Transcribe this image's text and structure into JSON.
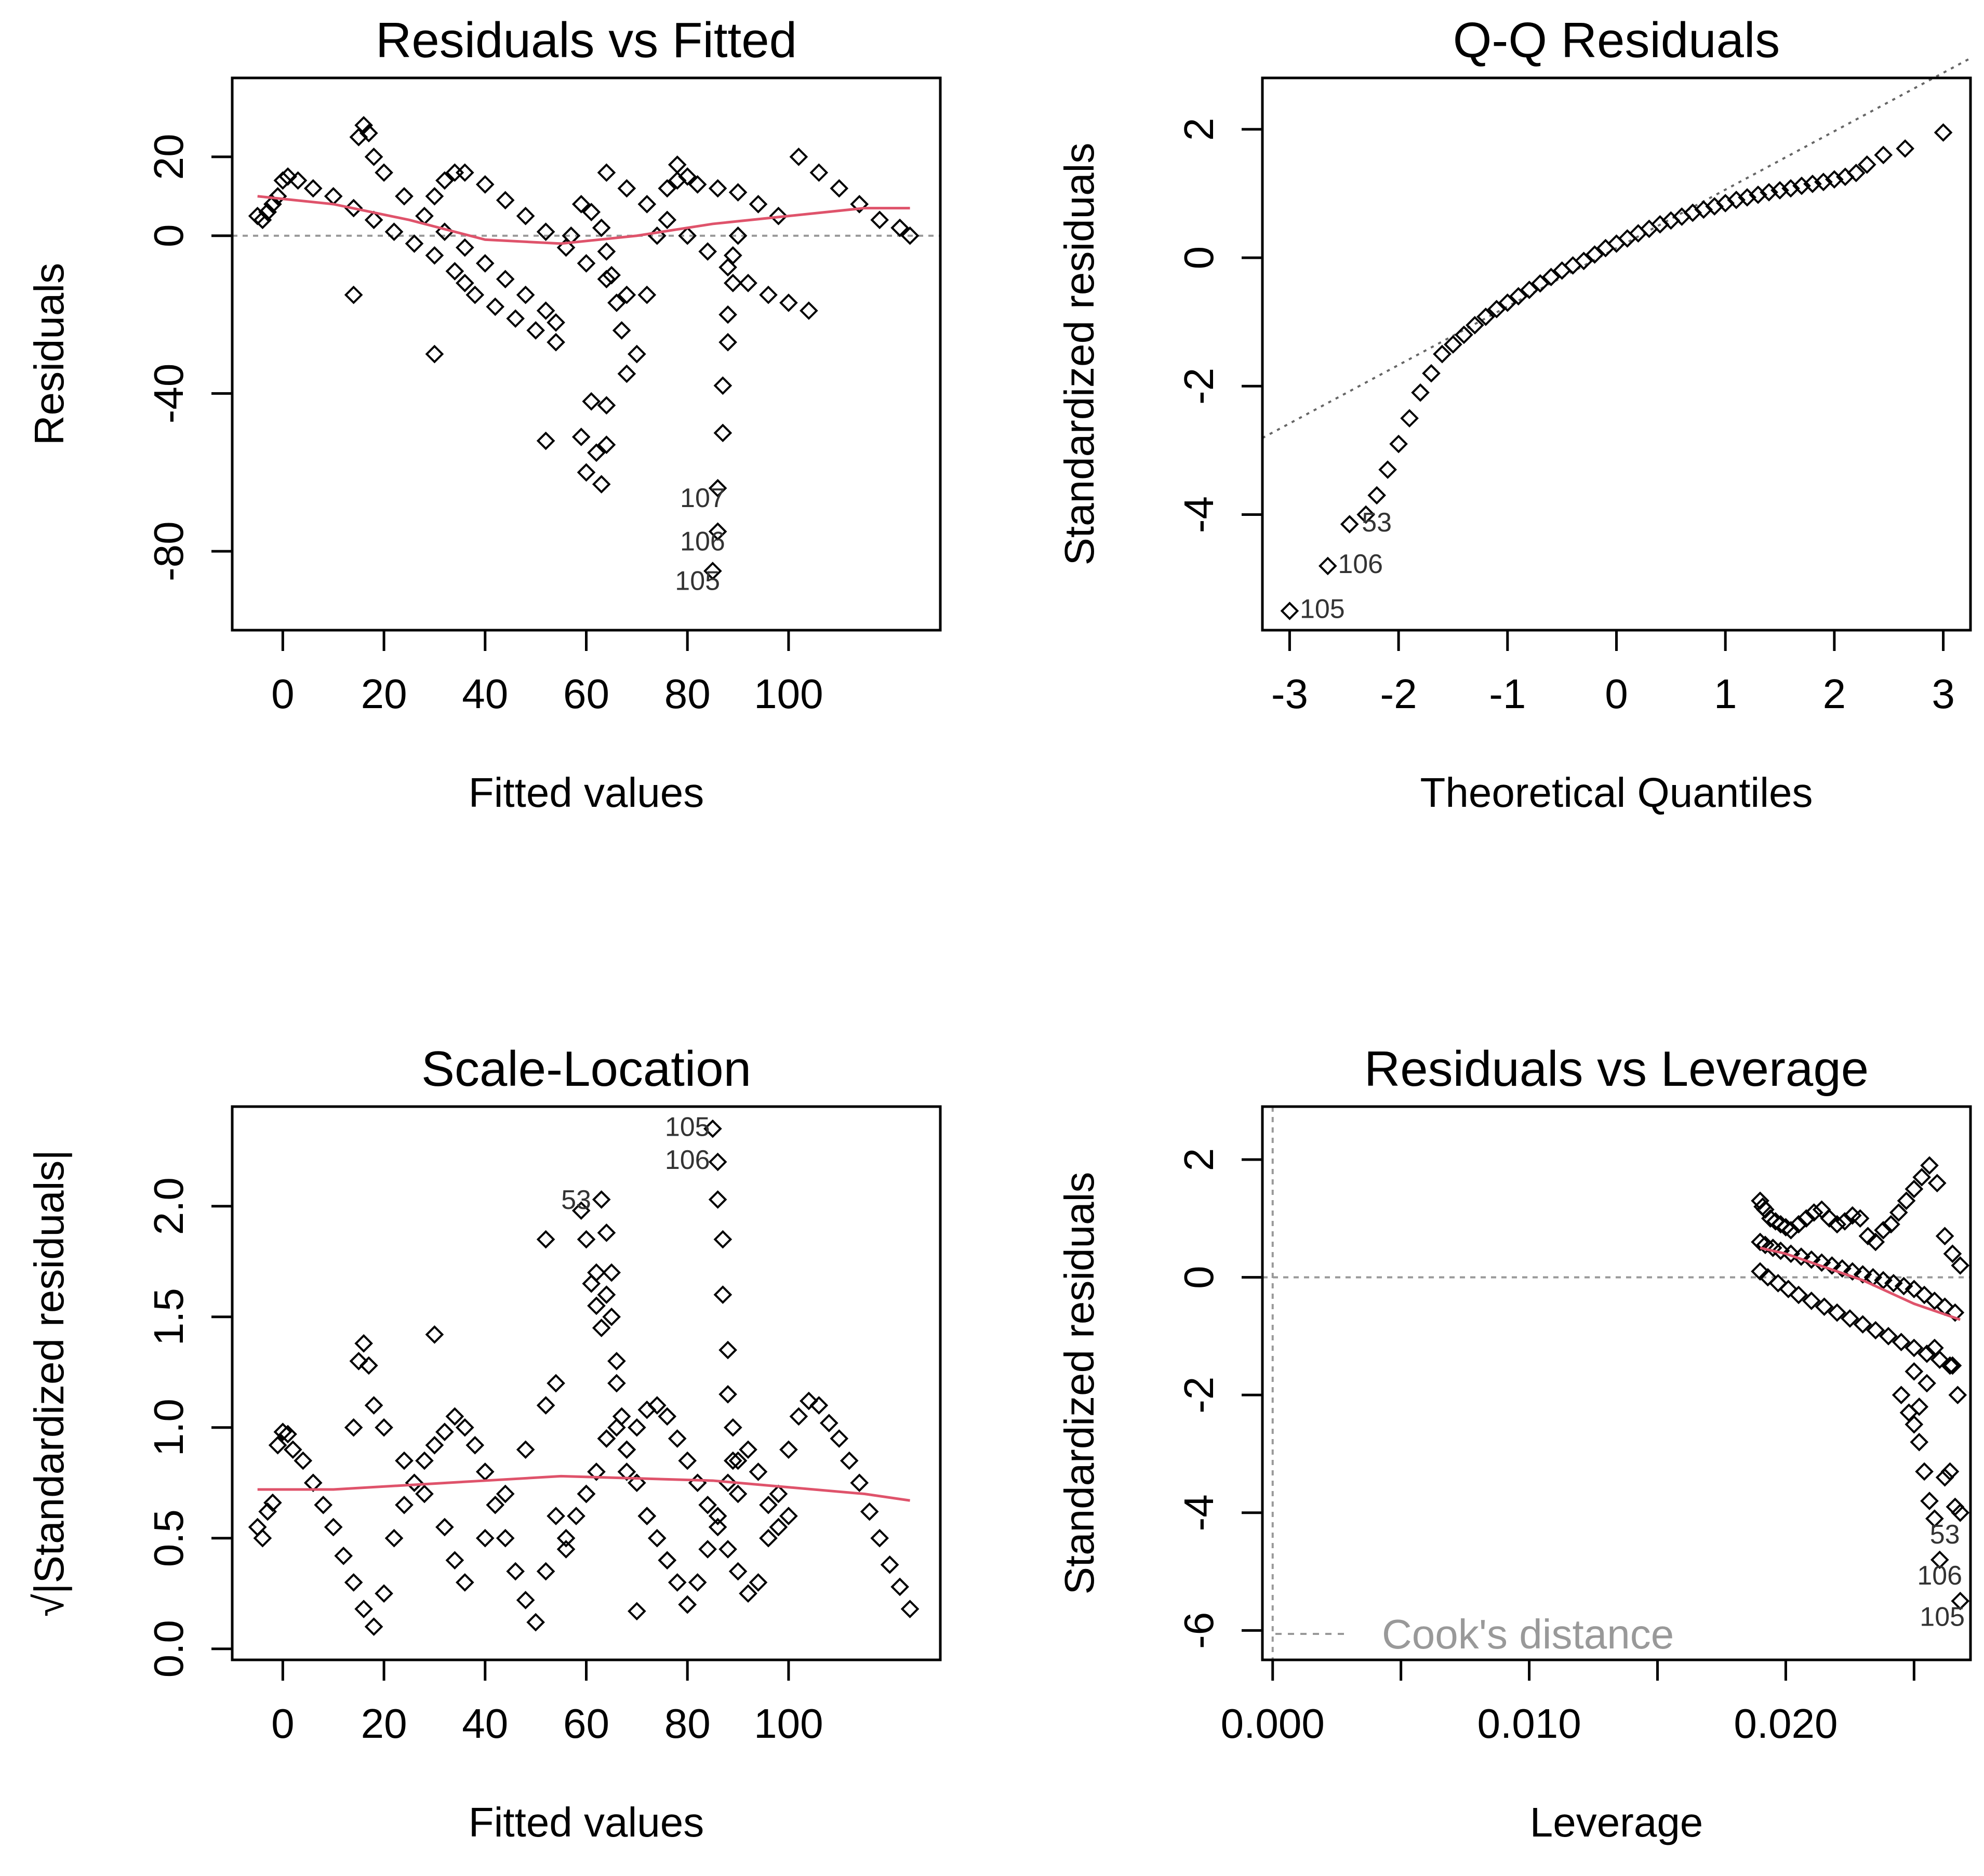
{
  "chart_data": [
    {
      "type": "scatter",
      "title": "Residuals vs Fitted",
      "xlabel": "Fitted values",
      "ylabel": "Residuals",
      "xlim": [
        -10,
        130
      ],
      "ylim": [
        -100,
        40
      ],
      "xticks": [
        0,
        20,
        40,
        60,
        80,
        100
      ],
      "xtick_labels": [
        "0",
        "20",
        "40",
        "60",
        "80",
        "100"
      ],
      "yticks": [
        -80,
        -40,
        0,
        20
      ],
      "ytick_labels": [
        "-80",
        "-40",
        "0",
        "20"
      ],
      "point_labels": [
        {
          "text": "107",
          "x": 83,
          "y": -67
        },
        {
          "text": "106",
          "x": 83,
          "y": -78
        },
        {
          "text": "105",
          "x": 82,
          "y": -88
        }
      ],
      "series": [
        {
          "x": [
            -5,
            -4,
            -3,
            -2,
            -1,
            0,
            1,
            3,
            6,
            10,
            14,
            18,
            22,
            26,
            30,
            34,
            36,
            38,
            42,
            46,
            50,
            54
          ],
          "y": [
            5,
            4,
            6,
            8,
            10,
            14,
            15,
            14,
            12,
            10,
            7,
            4,
            1,
            -2,
            -5,
            -9,
            -12,
            -15,
            -18,
            -21,
            -24,
            -27
          ]
        },
        {
          "x": [
            14,
            15,
            16,
            17,
            18,
            20,
            24,
            28,
            32,
            36,
            40,
            44,
            48,
            52,
            54
          ],
          "y": [
            -15,
            25,
            28,
            26,
            20,
            16,
            10,
            5,
            1,
            -3,
            -7,
            -11,
            -15,
            -19,
            -22
          ]
        },
        {
          "x": [
            30,
            32,
            34,
            36,
            40,
            44,
            48,
            52,
            56,
            60,
            64,
            68
          ],
          "y": [
            10,
            14,
            16,
            16,
            13,
            9,
            5,
            1,
            -3,
            -7,
            -11,
            -15
          ]
        },
        {
          "x": [
            57,
            59,
            61,
            63,
            64,
            65,
            66,
            67,
            68,
            70,
            72,
            74,
            76,
            78,
            80
          ],
          "y": [
            0,
            8,
            6,
            2,
            -4,
            -10,
            -17,
            -24,
            -35,
            -30,
            -15,
            0,
            12,
            18,
            15
          ]
        },
        {
          "x": [
            64,
            68,
            72,
            76,
            80,
            84,
            88,
            92,
            96,
            100,
            104
          ],
          "y": [
            16,
            12,
            8,
            4,
            0,
            -4,
            -8,
            -12,
            -15,
            -17,
            -19
          ]
        },
        {
          "x": [
            78,
            82,
            86,
            90,
            94,
            98,
            102,
            106,
            110,
            114,
            118,
            122,
            124
          ],
          "y": [
            14,
            13,
            12,
            11,
            8,
            5,
            20,
            16,
            12,
            8,
            4,
            2,
            0
          ]
        },
        {
          "x": [
            52,
            59,
            60,
            61,
            62,
            63,
            64,
            64,
            85,
            86,
            86,
            87,
            87,
            88,
            88,
            89,
            89,
            90,
            30
          ],
          "y": [
            -52,
            -51,
            -60,
            -42,
            -55,
            -63,
            -43,
            -53,
            -85,
            -75,
            -64,
            -50,
            -38,
            -27,
            -20,
            -12,
            -5,
            0,
            -30
          ]
        }
      ],
      "smooth": {
        "x": [
          -5,
          10,
          25,
          40,
          55,
          70,
          85,
          100,
          115,
          124
        ],
        "y": [
          10,
          8,
          4,
          -1,
          -2,
          0,
          3,
          5,
          7,
          7
        ]
      },
      "reference_line": {
        "y": 0
      }
    },
    {
      "type": "scatter",
      "title": "Q-Q Residuals",
      "xlabel": "Theoretical Quantiles",
      "ylabel": "Standardized residuals",
      "xlim": [
        -3.25,
        3.25
      ],
      "ylim": [
        -5.8,
        2.8
      ],
      "xticks": [
        -3,
        -2,
        -1,
        0,
        1,
        2,
        3
      ],
      "xtick_labels": [
        "-3",
        "-2",
        "-1",
        "0",
        "1",
        "2",
        "3"
      ],
      "yticks": [
        -4,
        -2,
        0,
        2
      ],
      "ytick_labels": [
        "-4",
        "-2",
        "0",
        "2"
      ],
      "point_labels": [
        {
          "text": "53",
          "x": -2.2,
          "y": -4.15
        },
        {
          "text": "106",
          "x": -2.35,
          "y": -4.8
        },
        {
          "text": "105",
          "x": -2.7,
          "y": -5.5
        }
      ],
      "series": [
        {
          "x": [
            -3.0,
            -2.65,
            -2.45,
            -2.3,
            -2.2,
            -2.1,
            -2.0,
            -1.9,
            -1.8,
            -1.7,
            -1.6,
            -1.5,
            -1.4,
            -1.3,
            -1.2,
            -1.1,
            -1.0,
            -0.9,
            -0.8,
            -0.7,
            -0.6,
            -0.5,
            -0.4,
            -0.3,
            -0.2,
            -0.1,
            0.0,
            0.1,
            0.2,
            0.3,
            0.4,
            0.5,
            0.6,
            0.7,
            0.8,
            0.9,
            1.0,
            1.1,
            1.2,
            1.3,
            1.4,
            1.5,
            1.6,
            1.7,
            1.8,
            1.9,
            2.0,
            2.1,
            2.2,
            2.3,
            2.45,
            2.65,
            3.0
          ],
          "y": [
            -5.5,
            -4.8,
            -4.15,
            -4.0,
            -3.7,
            -3.3,
            -2.9,
            -2.5,
            -2.1,
            -1.8,
            -1.5,
            -1.35,
            -1.2,
            -1.05,
            -0.92,
            -0.8,
            -0.7,
            -0.6,
            -0.5,
            -0.4,
            -0.3,
            -0.2,
            -0.12,
            -0.05,
            0.05,
            0.15,
            0.22,
            0.3,
            0.38,
            0.45,
            0.52,
            0.58,
            0.64,
            0.7,
            0.75,
            0.8,
            0.85,
            0.9,
            0.94,
            0.98,
            1.02,
            1.05,
            1.08,
            1.12,
            1.15,
            1.18,
            1.22,
            1.26,
            1.32,
            1.45,
            1.6,
            1.7,
            1.95
          ]
        }
      ],
      "reference_line": {
        "slope": 0.91,
        "intercept": 0.15
      }
    },
    {
      "type": "scatter",
      "title": "Scale-Location",
      "xlabel": "Fitted values",
      "ylabel": "√|Standardized residuals|",
      "xlim": [
        -10,
        130
      ],
      "ylim": [
        -0.05,
        2.45
      ],
      "xticks": [
        0,
        20,
        40,
        60,
        80,
        100
      ],
      "xtick_labels": [
        "0",
        "20",
        "40",
        "60",
        "80",
        "100"
      ],
      "yticks": [
        0.0,
        0.5,
        1.0,
        1.5,
        2.0
      ],
      "ytick_labels": [
        "0.0",
        "0.5",
        "1.0",
        "1.5",
        "2.0"
      ],
      "point_labels": [
        {
          "text": "105",
          "x": 80,
          "y": 2.35
        },
        {
          "text": "106",
          "x": 80,
          "y": 2.2
        },
        {
          "text": "53",
          "x": 58,
          "y": 2.02
        }
      ],
      "series": [
        {
          "x": [
            -5,
            -4,
            -3,
            -2,
            -1,
            0,
            1,
            2,
            4,
            6,
            8,
            10,
            12,
            14,
            16,
            18,
            20,
            22,
            24,
            26,
            28,
            30,
            32,
            34,
            36,
            38,
            40,
            42,
            44,
            46,
            48,
            50,
            52,
            54
          ],
          "y": [
            0.55,
            0.5,
            0.62,
            0.66,
            0.92,
            0.98,
            0.97,
            0.9,
            0.85,
            0.75,
            0.65,
            0.55,
            0.42,
            0.3,
            0.18,
            0.1,
            0.25,
            0.5,
            0.65,
            0.75,
            0.85,
            0.92,
            0.98,
            1.05,
            1.0,
            0.92,
            0.8,
            0.65,
            0.5,
            0.35,
            0.22,
            0.12,
            0.35,
            0.6
          ]
        },
        {
          "x": [
            14,
            15,
            16,
            17,
            18,
            20,
            24,
            28,
            32,
            34,
            36,
            40,
            44,
            48,
            52,
            54,
            56,
            60,
            64,
            68,
            72,
            76,
            80
          ],
          "y": [
            1.0,
            1.3,
            1.38,
            1.28,
            1.1,
            1.0,
            0.85,
            0.7,
            0.55,
            0.4,
            0.3,
            0.5,
            0.7,
            0.9,
            1.1,
            1.2,
            0.5,
            0.7,
            0.95,
            0.8,
            0.6,
            0.4,
            0.2
          ]
        },
        {
          "x": [
            56,
            58,
            60,
            62,
            64,
            66,
            68,
            70,
            72,
            74,
            76,
            78,
            80,
            82,
            84,
            86,
            88,
            90,
            92,
            94,
            96,
            98,
            100
          ],
          "y": [
            0.45,
            0.6,
            0.7,
            0.8,
            0.95,
            1.0,
            0.9,
            0.75,
            0.6,
            0.5,
            0.4,
            0.3,
            0.2,
            0.3,
            0.45,
            0.6,
            0.75,
            0.85,
            0.9,
            0.8,
            0.65,
            0.55,
            0.6
          ]
        },
        {
          "x": [
            68,
            70,
            72,
            74,
            76,
            78,
            80,
            82,
            84,
            86,
            88,
            90,
            92,
            94,
            96,
            98,
            100,
            102,
            104,
            106,
            108,
            110,
            112,
            114,
            116,
            118,
            120,
            122,
            124
          ],
          "y": [
            0.9,
            1.0,
            1.08,
            1.1,
            1.05,
            0.95,
            0.85,
            0.75,
            0.65,
            0.55,
            0.45,
            0.35,
            0.25,
            0.3,
            0.5,
            0.7,
            0.9,
            1.05,
            1.12,
            1.1,
            1.02,
            0.95,
            0.85,
            0.75,
            0.62,
            0.5,
            0.38,
            0.28,
            0.18
          ]
        },
        {
          "x": [
            30,
            52,
            59,
            60,
            61,
            62,
            62,
            63,
            63,
            64,
            64,
            65,
            65,
            66,
            66,
            67,
            70,
            85,
            86,
            86,
            87,
            87,
            88,
            88,
            89,
            89,
            90
          ],
          "y": [
            1.42,
            1.85,
            1.98,
            1.85,
            1.65,
            1.7,
            1.55,
            1.45,
            2.03,
            1.88,
            1.6,
            1.7,
            1.5,
            1.3,
            1.2,
            1.05,
            0.17,
            2.35,
            2.2,
            2.03,
            1.85,
            1.6,
            1.35,
            1.15,
            1.0,
            0.85,
            0.7
          ]
        }
      ],
      "smooth": {
        "x": [
          -5,
          10,
          25,
          40,
          55,
          70,
          85,
          100,
          115,
          124
        ],
        "y": [
          0.72,
          0.72,
          0.74,
          0.76,
          0.78,
          0.77,
          0.76,
          0.73,
          0.7,
          0.67
        ]
      }
    },
    {
      "type": "scatter",
      "title": "Residuals vs Leverage",
      "xlabel": "Leverage",
      "ylabel": "Standardized residuals",
      "xlim": [
        -0.0004,
        0.0272
      ],
      "ylim": [
        -6.5,
        2.9
      ],
      "xticks": [
        0.0,
        0.005,
        0.01,
        0.015,
        0.02,
        0.025
      ],
      "xtick_labels": [
        "0.000",
        "",
        "0.010",
        "",
        "0.020",
        ""
      ],
      "yticks": [
        -6,
        -4,
        -2,
        0,
        2
      ],
      "ytick_labels": [
        "-6",
        "-4",
        "-2",
        "0",
        "2"
      ],
      "point_labels": [
        {
          "text": "53",
          "x": 0.0262,
          "y": -4.4
        },
        {
          "text": "106",
          "x": 0.026,
          "y": -5.1
        },
        {
          "text": "105",
          "x": 0.0261,
          "y": -5.8
        }
      ],
      "series": [
        {
          "x": [
            0.019,
            0.0191,
            0.0192,
            0.0194,
            0.0196,
            0.0198,
            0.02,
            0.0202,
            0.0205,
            0.0208,
            0.0211,
            0.0214,
            0.0217,
            0.022,
            0.0223,
            0.0226,
            0.0229,
            0.0232,
            0.0235,
            0.0238,
            0.0241,
            0.0244,
            0.0247,
            0.025,
            0.0253,
            0.0256,
            0.0259,
            0.0262,
            0.0265,
            0.0268,
            0.019,
            0.0192,
            0.0195,
            0.0198,
            0.0202,
            0.0206,
            0.021,
            0.0214,
            0.0218,
            0.0222,
            0.0226,
            0.023,
            0.0234,
            0.0238,
            0.0242,
            0.0246,
            0.025,
            0.0254,
            0.0258,
            0.0262,
            0.0266,
            0.019,
            0.0193,
            0.0197,
            0.0201,
            0.0205,
            0.021,
            0.0215,
            0.022,
            0.0225,
            0.023,
            0.0235,
            0.024,
            0.0245,
            0.025,
            0.0255,
            0.026,
            0.0265
          ],
          "y": [
            1.3,
            1.2,
            1.15,
            1.0,
            0.95,
            0.9,
            0.85,
            0.8,
            0.9,
            1.0,
            1.1,
            1.15,
            1.0,
            0.9,
            0.95,
            1.05,
            1.0,
            0.7,
            0.6,
            0.8,
            0.9,
            1.1,
            1.3,
            1.5,
            1.7,
            1.9,
            1.6,
            0.7,
            0.4,
            0.2,
            0.6,
            0.55,
            0.5,
            0.45,
            0.4,
            0.35,
            0.3,
            0.25,
            0.2,
            0.15,
            0.1,
            0.05,
            0.0,
            -0.05,
            -0.1,
            -0.15,
            -0.2,
            -0.3,
            -0.4,
            -0.5,
            -0.6,
            0.1,
            0.0,
            -0.1,
            -0.2,
            -0.3,
            -0.4,
            -0.5,
            -0.6,
            -0.7,
            -0.8,
            -0.9,
            -1.0,
            -1.1,
            -1.2,
            -1.3,
            -1.4,
            -1.5
          ]
        },
        {
          "x": [
            0.0245,
            0.0248,
            0.025,
            0.0252,
            0.0254,
            0.0256,
            0.0258,
            0.026,
            0.0262,
            0.0264,
            0.0266,
            0.0268,
            0.0268,
            0.0267,
            0.0264,
            0.0258,
            0.0255,
            0.0252,
            0.025
          ],
          "y": [
            -2.0,
            -2.3,
            -2.5,
            -2.8,
            -3.3,
            -3.8,
            -4.1,
            -4.8,
            -3.4,
            -3.3,
            -3.9,
            -4.0,
            -5.5,
            -2.0,
            -1.5,
            -1.2,
            -1.8,
            -2.2,
            -1.6
          ]
        }
      ],
      "smooth": {
        "x": [
          0.019,
          0.02,
          0.021,
          0.022,
          0.023,
          0.024,
          0.025,
          0.026,
          0.0268
        ],
        "y": [
          0.5,
          0.4,
          0.25,
          0.1,
          -0.05,
          -0.25,
          -0.45,
          -0.6,
          -0.72
        ]
      },
      "reference_line": {
        "y": 0,
        "x": 0
      },
      "legend": {
        "label": "Cook's distance",
        "position": "bottom-left"
      }
    }
  ]
}
